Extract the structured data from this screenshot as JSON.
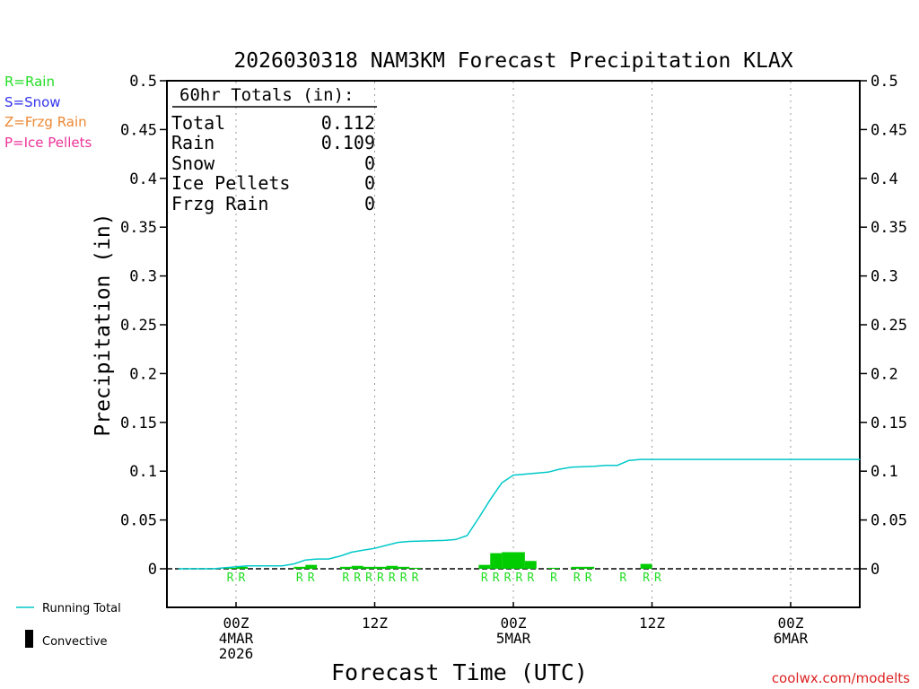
{
  "chart_data": {
    "type": "bar",
    "title": "2026030318 NAM3KM Forecast Precipitation KLAX",
    "xlabel": "Forecast Time (UTC)",
    "ylabel": "Precipitation (in)",
    "ylim": [
      -0.04,
      0.5
    ],
    "yticks": [
      "0.5",
      "0.45",
      "0.4",
      "0.35",
      "0.3",
      "0.25",
      "0.2",
      "0.15",
      "0.1",
      "0.05",
      "0"
    ],
    "ytick_values": [
      0.5,
      0.45,
      0.4,
      0.35,
      0.3,
      0.25,
      0.2,
      0.15,
      0.1,
      0.05,
      0
    ],
    "xlim_hours": [
      -6,
      54
    ],
    "xticks": [
      {
        "hour": 0,
        "line1": "00Z",
        "line2": "4MAR",
        "line3": "2026"
      },
      {
        "hour": 12,
        "line1": "12Z",
        "line2": "",
        "line3": ""
      },
      {
        "hour": 24,
        "line1": "00Z",
        "line2": "5MAR",
        "line3": ""
      },
      {
        "hour": 36,
        "line1": "12Z",
        "line2": "",
        "line3": ""
      },
      {
        "hour": 48,
        "line1": "00Z",
        "line2": "6MAR",
        "line3": ""
      }
    ],
    "totals_box": {
      "header": "60hr Totals (in):",
      "rows": [
        {
          "label": "Total",
          "value": "0.112"
        },
        {
          "label": "Rain",
          "value": "0.109"
        },
        {
          "label": "Snow",
          "value": "0"
        },
        {
          "label": "Ice Pellets",
          "value": "0"
        },
        {
          "label": "Frzg Rain",
          "value": "0"
        }
      ]
    },
    "ptype_legend": [
      {
        "text": "R=Rain",
        "color": "#22dd22"
      },
      {
        "text": "S=Snow",
        "color": "#3333ee"
      },
      {
        "text": "Z=Frzg Rain",
        "color": "#ee8833"
      },
      {
        "text": "P=Ice Pellets",
        "color": "#ee3399"
      }
    ],
    "series_legend": {
      "running_total": "Running Total",
      "convective": "Convective"
    },
    "watermark": "coolwx.com/modelts",
    "colors": {
      "bars": "#00cc00",
      "running_total": "#00c8c8",
      "rain_letter": "#22dd22"
    },
    "bars": [
      {
        "hour": -1,
        "value": 0.001
      },
      {
        "hour": 0,
        "value": 0.002
      },
      {
        "hour": 5,
        "value": 0.002
      },
      {
        "hour": 6,
        "value": 0.004
      },
      {
        "hour": 9,
        "value": 0.002
      },
      {
        "hour": 10,
        "value": 0.003
      },
      {
        "hour": 11,
        "value": 0.002
      },
      {
        "hour": 12,
        "value": 0.002
      },
      {
        "hour": 13,
        "value": 0.003
      },
      {
        "hour": 14,
        "value": 0.002
      },
      {
        "hour": 15,
        "value": 0.001
      },
      {
        "hour": 21,
        "value": 0.004
      },
      {
        "hour": 22,
        "value": 0.016
      },
      {
        "hour": 23,
        "value": 0.017
      },
      {
        "hour": 24,
        "value": 0.017
      },
      {
        "hour": 25,
        "value": 0.008
      },
      {
        "hour": 27,
        "value": 0.001
      },
      {
        "hour": 29,
        "value": 0.002
      },
      {
        "hour": 30,
        "value": 0.002
      },
      {
        "hour": 35,
        "value": 0.005
      }
    ],
    "ptype_markers": [
      {
        "hour": -0.5,
        "label": "R"
      },
      {
        "hour": 0.5,
        "label": "R"
      },
      {
        "hour": 5.5,
        "label": "R"
      },
      {
        "hour": 6.5,
        "label": "R"
      },
      {
        "hour": 9.5,
        "label": "R"
      },
      {
        "hour": 10.5,
        "label": "R"
      },
      {
        "hour": 11.5,
        "label": "R"
      },
      {
        "hour": 12.5,
        "label": "R"
      },
      {
        "hour": 13.5,
        "label": "R"
      },
      {
        "hour": 14.5,
        "label": "R"
      },
      {
        "hour": 15.5,
        "label": "R"
      },
      {
        "hour": 21.5,
        "label": "R"
      },
      {
        "hour": 22.5,
        "label": "R"
      },
      {
        "hour": 23.5,
        "label": "R"
      },
      {
        "hour": 24.5,
        "label": "R"
      },
      {
        "hour": 25.5,
        "label": "R"
      },
      {
        "hour": 27.5,
        "label": "R"
      },
      {
        "hour": 29.5,
        "label": "R"
      },
      {
        "hour": 30.5,
        "label": "R"
      },
      {
        "hour": 33.5,
        "label": "R"
      },
      {
        "hour": 35.5,
        "label": "R"
      },
      {
        "hour": 36.5,
        "label": "R"
      }
    ],
    "running_total": [
      {
        "hour": -5,
        "value": 0
      },
      {
        "hour": -2,
        "value": 0
      },
      {
        "hour": -1,
        "value": 0.001
      },
      {
        "hour": 0,
        "value": 0.002
      },
      {
        "hour": 1,
        "value": 0.003
      },
      {
        "hour": 4,
        "value": 0.003
      },
      {
        "hour": 5,
        "value": 0.005
      },
      {
        "hour": 6,
        "value": 0.009
      },
      {
        "hour": 7,
        "value": 0.01
      },
      {
        "hour": 8,
        "value": 0.01
      },
      {
        "hour": 9,
        "value": 0.013
      },
      {
        "hour": 10,
        "value": 0.017
      },
      {
        "hour": 11,
        "value": 0.019
      },
      {
        "hour": 12,
        "value": 0.021
      },
      {
        "hour": 13,
        "value": 0.024
      },
      {
        "hour": 14,
        "value": 0.027
      },
      {
        "hour": 15,
        "value": 0.028
      },
      {
        "hour": 18,
        "value": 0.029
      },
      {
        "hour": 19,
        "value": 0.03
      },
      {
        "hour": 20,
        "value": 0.034
      },
      {
        "hour": 21,
        "value": 0.052
      },
      {
        "hour": 22,
        "value": 0.071
      },
      {
        "hour": 23,
        "value": 0.088
      },
      {
        "hour": 24,
        "value": 0.096
      },
      {
        "hour": 25,
        "value": 0.097
      },
      {
        "hour": 26,
        "value": 0.098
      },
      {
        "hour": 27,
        "value": 0.099
      },
      {
        "hour": 28,
        "value": 0.102
      },
      {
        "hour": 29,
        "value": 0.104
      },
      {
        "hour": 31,
        "value": 0.105
      },
      {
        "hour": 32,
        "value": 0.106
      },
      {
        "hour": 33,
        "value": 0.106
      },
      {
        "hour": 34,
        "value": 0.111
      },
      {
        "hour": 35,
        "value": 0.112
      },
      {
        "hour": 54,
        "value": 0.112
      }
    ]
  }
}
